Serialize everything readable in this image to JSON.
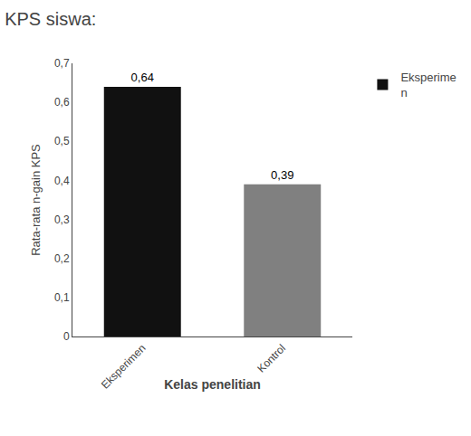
{
  "chart_data": {
    "type": "bar",
    "title": "KPS siswa:",
    "xlabel": "Kelas penelitian",
    "ylabel": "Rata-rata n-gain KPS",
    "categories": [
      "Eksperimen",
      "Kontrol"
    ],
    "series": [
      {
        "name": "Eksperime\nn",
        "values": [
          0.64,
          0.39
        ],
        "value_labels": [
          "0,64",
          "0,39"
        ],
        "colors": [
          "#111111",
          "#808080"
        ]
      }
    ],
    "data_labels": true,
    "ylim": [
      0,
      0.7
    ],
    "yticks": [
      0,
      {
        "value": 0.1,
        "label": "0,1"
      },
      {
        "value": 0.2,
        "label": "0,2"
      },
      {
        "value": 0.3,
        "label": "0,3"
      },
      {
        "value": 0.4,
        "label": "0,4"
      },
      {
        "value": 0.5,
        "label": "0,5"
      },
      {
        "value": 0.6,
        "label": "0,6"
      },
      {
        "value": 0.7,
        "label": "0,7"
      }
    ],
    "grid": false,
    "legend": "right"
  }
}
